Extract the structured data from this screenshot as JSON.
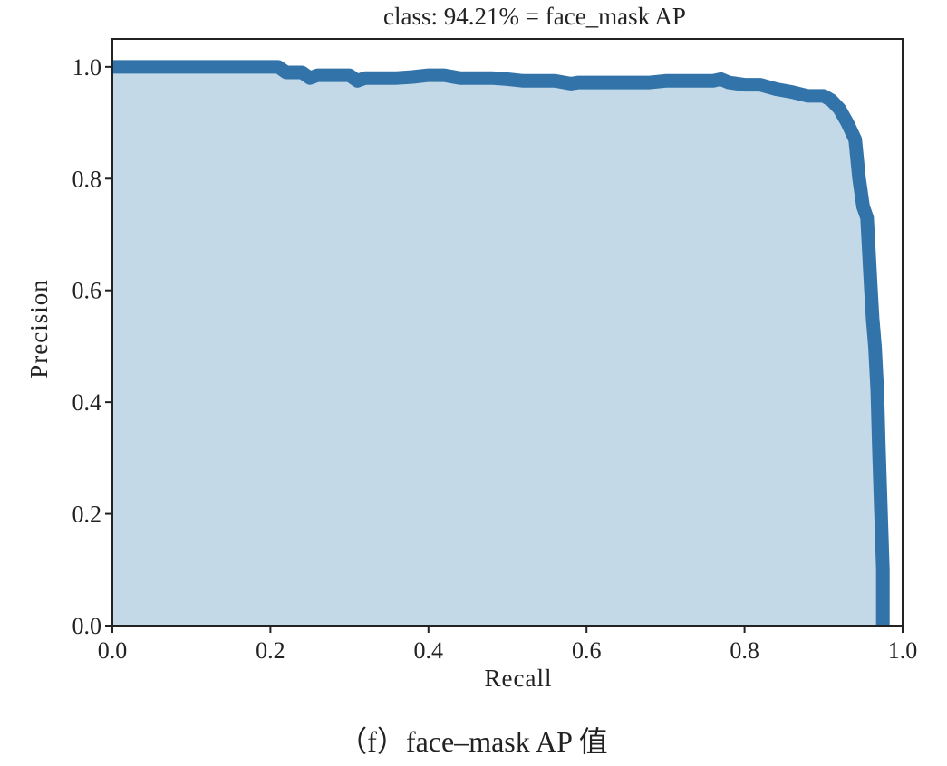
{
  "chart_data": {
    "type": "area",
    "title": "class: 94.21% = face_mask AP",
    "xlabel": "Recall",
    "ylabel": "Precision",
    "xlim": [
      0.0,
      1.0
    ],
    "ylim": [
      0.0,
      1.05
    ],
    "xticks": [
      "0.0",
      "0.2",
      "0.4",
      "0.6",
      "0.8",
      "1.0"
    ],
    "yticks": [
      "0.0",
      "0.2",
      "0.4",
      "0.6",
      "0.8",
      "1.0"
    ],
    "grid": false,
    "colors": {
      "line": "#3274a9",
      "fill": "#c3d9e8"
    },
    "series": [
      {
        "x": [
          0.0,
          0.05,
          0.1,
          0.15,
          0.2,
          0.21,
          0.22,
          0.24,
          0.25,
          0.26,
          0.28,
          0.3,
          0.31,
          0.32,
          0.34,
          0.36,
          0.38,
          0.4,
          0.42,
          0.44,
          0.46,
          0.48,
          0.5,
          0.52,
          0.54,
          0.56,
          0.58,
          0.59,
          0.6,
          0.62,
          0.64,
          0.66,
          0.68,
          0.7,
          0.72,
          0.74,
          0.76,
          0.77,
          0.78,
          0.8,
          0.82,
          0.84,
          0.86,
          0.88,
          0.9,
          0.91,
          0.92,
          0.93,
          0.94,
          0.945,
          0.95,
          0.955,
          0.96,
          0.962,
          0.965,
          0.968,
          0.97,
          0.975,
          0.975
        ],
        "y": [
          1.0,
          1.0,
          1.0,
          1.0,
          1.0,
          1.0,
          0.99,
          0.99,
          0.98,
          0.985,
          0.985,
          0.985,
          0.975,
          0.98,
          0.98,
          0.98,
          0.982,
          0.985,
          0.985,
          0.98,
          0.98,
          0.98,
          0.978,
          0.975,
          0.975,
          0.975,
          0.97,
          0.972,
          0.972,
          0.972,
          0.972,
          0.972,
          0.972,
          0.975,
          0.975,
          0.975,
          0.975,
          0.978,
          0.972,
          0.968,
          0.968,
          0.96,
          0.955,
          0.948,
          0.948,
          0.94,
          0.925,
          0.9,
          0.87,
          0.8,
          0.75,
          0.73,
          0.6,
          0.55,
          0.5,
          0.42,
          0.32,
          0.1,
          0.0
        ]
      }
    ]
  },
  "caption": {
    "prefix": "（f）",
    "text": "face‒mask  AP 值"
  }
}
